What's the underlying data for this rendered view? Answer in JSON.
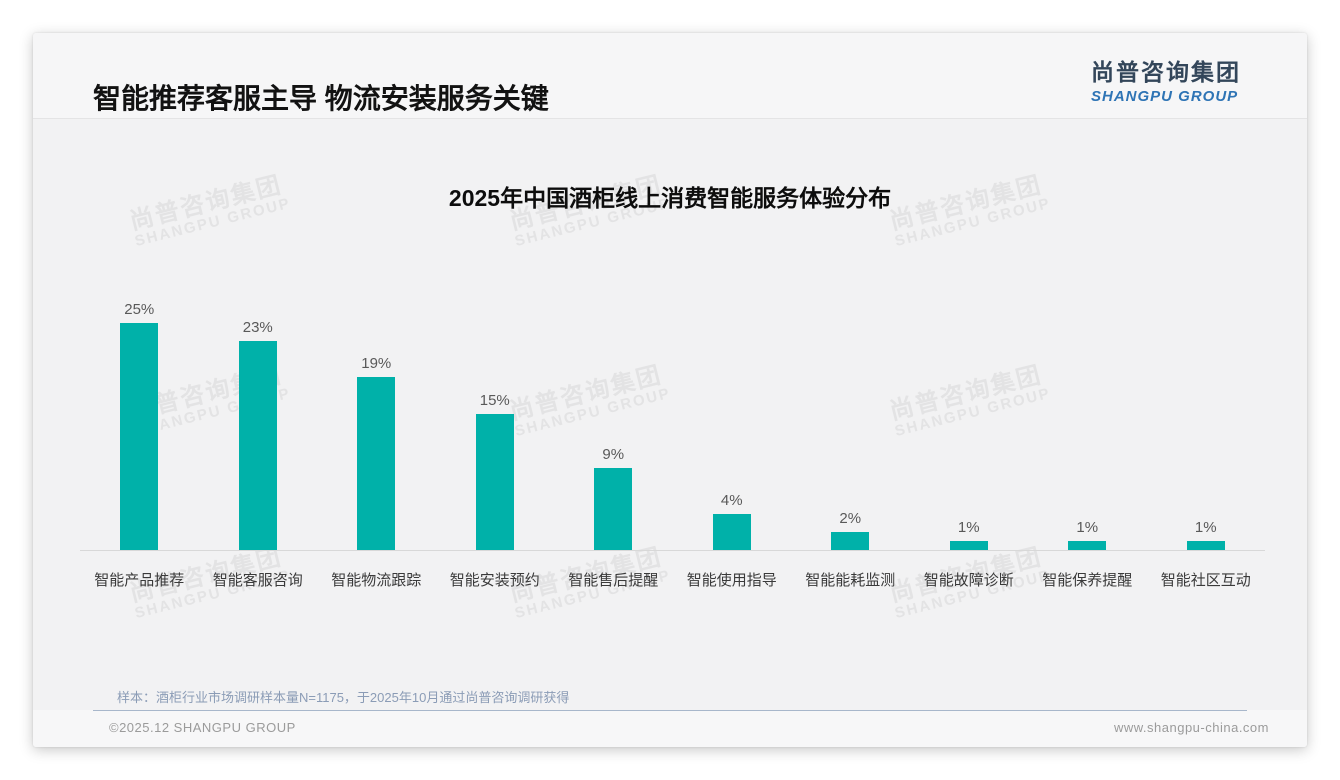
{
  "header": {
    "title": "智能推荐客服主导 物流安装服务关键",
    "logo_zh": "尚普咨询集团",
    "logo_en": "SHANGPU GROUP"
  },
  "watermark": {
    "zh": "尚普咨询集团",
    "en": "SHANGPU GROUP"
  },
  "chart_data": {
    "type": "bar",
    "title": "2025年中国酒柜线上消费智能服务体验分布",
    "categories": [
      "智能产品推荐",
      "智能客服咨询",
      "智能物流跟踪",
      "智能安装预约",
      "智能售后提醒",
      "智能使用指导",
      "智能能耗监测",
      "智能故障诊断",
      "智能保养提醒",
      "智能社区互动"
    ],
    "values": [
      25,
      23,
      19,
      15,
      9,
      4,
      2,
      1,
      1,
      1
    ],
    "value_labels": [
      "25%",
      "23%",
      "19%",
      "15%",
      "9%",
      "4%",
      "2%",
      "1%",
      "1%",
      "1%"
    ],
    "unit": "percent",
    "xlabel": "",
    "ylabel": "",
    "ylim": [
      0,
      35
    ],
    "grid": false,
    "legend": "none",
    "bar_color": "#00B1A9"
  },
  "footnote": {
    "sample": "样本：酒柜行业市场调研样本量N=1175，于2025年10月通过尚普咨询调研获得"
  },
  "footer": {
    "copyright": "©2025.12 SHANGPU GROUP",
    "website": "www.shangpu-china.com"
  },
  "colors": {
    "bar_teal": "#00B1A9",
    "card_background": "#F2F2F3",
    "logo_blue": "#2E74B5",
    "logo_dark": "#33465A",
    "note_blue_gray": "#8B9CB6",
    "axis_gray": "#D8D8D8"
  }
}
